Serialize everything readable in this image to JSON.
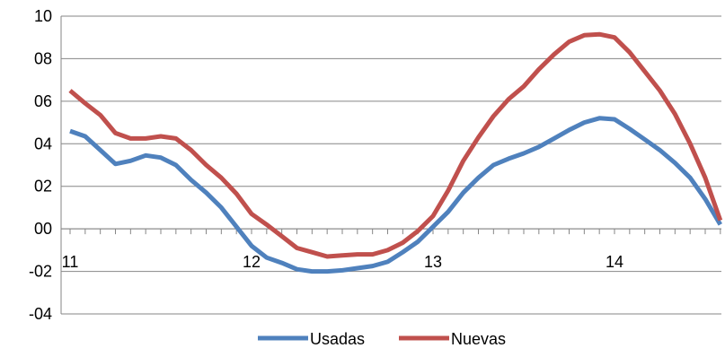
{
  "chart_data": {
    "type": "line",
    "title": "",
    "xlabel": "",
    "ylabel": "",
    "y_axis": {
      "min": -4,
      "max": 10,
      "step": 2,
      "tick_labels": [
        "-04",
        "-02",
        "00",
        "02",
        "04",
        "06",
        "08",
        "10"
      ]
    },
    "x_axis": {
      "min": 11,
      "max": 14.6,
      "tick_labels": [
        {
          "value": 11,
          "label": "11"
        },
        {
          "value": 12,
          "label": "12"
        },
        {
          "value": 13,
          "label": "13"
        },
        {
          "value": 14,
          "label": "14"
        }
      ],
      "minor_ticks_per_year": 12
    },
    "grid": "horizontal",
    "legend": {
      "position": "bottom"
    },
    "series": [
      {
        "name": "Usadas",
        "color": "#4F81BD",
        "points": [
          [
            11.0,
            4.6
          ],
          [
            11.083,
            4.35
          ],
          [
            11.167,
            3.7
          ],
          [
            11.25,
            3.05
          ],
          [
            11.333,
            3.2
          ],
          [
            11.417,
            3.45
          ],
          [
            11.5,
            3.35
          ],
          [
            11.583,
            3.0
          ],
          [
            11.667,
            2.3
          ],
          [
            11.75,
            1.7
          ],
          [
            11.833,
            1.0
          ],
          [
            11.917,
            0.1
          ],
          [
            12.0,
            -0.8
          ],
          [
            12.083,
            -1.35
          ],
          [
            12.167,
            -1.6
          ],
          [
            12.25,
            -1.9
          ],
          [
            12.333,
            -2.0
          ],
          [
            12.417,
            -2.0
          ],
          [
            12.5,
            -1.95
          ],
          [
            12.583,
            -1.85
          ],
          [
            12.667,
            -1.75
          ],
          [
            12.75,
            -1.55
          ],
          [
            12.833,
            -1.1
          ],
          [
            12.917,
            -0.6
          ],
          [
            13.0,
            0.1
          ],
          [
            13.083,
            0.8
          ],
          [
            13.167,
            1.7
          ],
          [
            13.25,
            2.4
          ],
          [
            13.333,
            3.0
          ],
          [
            13.417,
            3.3
          ],
          [
            13.5,
            3.55
          ],
          [
            13.583,
            3.85
          ],
          [
            13.667,
            4.25
          ],
          [
            13.75,
            4.65
          ],
          [
            13.833,
            5.0
          ],
          [
            13.917,
            5.2
          ],
          [
            14.0,
            5.15
          ],
          [
            14.083,
            4.7
          ],
          [
            14.167,
            4.2
          ],
          [
            14.25,
            3.7
          ],
          [
            14.333,
            3.1
          ],
          [
            14.417,
            2.4
          ],
          [
            14.5,
            1.4
          ],
          [
            14.583,
            0.2
          ]
        ]
      },
      {
        "name": "Nuevas",
        "color": "#C0504D",
        "points": [
          [
            11.0,
            6.5
          ],
          [
            11.083,
            5.9
          ],
          [
            11.167,
            5.35
          ],
          [
            11.25,
            4.5
          ],
          [
            11.333,
            4.25
          ],
          [
            11.417,
            4.25
          ],
          [
            11.5,
            4.35
          ],
          [
            11.583,
            4.25
          ],
          [
            11.667,
            3.7
          ],
          [
            11.75,
            3.0
          ],
          [
            11.833,
            2.4
          ],
          [
            11.917,
            1.65
          ],
          [
            12.0,
            0.7
          ],
          [
            12.083,
            0.2
          ],
          [
            12.167,
            -0.35
          ],
          [
            12.25,
            -0.9
          ],
          [
            12.333,
            -1.1
          ],
          [
            12.417,
            -1.3
          ],
          [
            12.5,
            -1.25
          ],
          [
            12.583,
            -1.2
          ],
          [
            12.667,
            -1.2
          ],
          [
            12.75,
            -1.0
          ],
          [
            12.833,
            -0.65
          ],
          [
            12.917,
            -0.1
          ],
          [
            13.0,
            0.6
          ],
          [
            13.083,
            1.8
          ],
          [
            13.167,
            3.2
          ],
          [
            13.25,
            4.3
          ],
          [
            13.333,
            5.3
          ],
          [
            13.417,
            6.1
          ],
          [
            13.5,
            6.7
          ],
          [
            13.583,
            7.5
          ],
          [
            13.667,
            8.2
          ],
          [
            13.75,
            8.8
          ],
          [
            13.833,
            9.1
          ],
          [
            13.917,
            9.15
          ],
          [
            14.0,
            9.0
          ],
          [
            14.083,
            8.3
          ],
          [
            14.167,
            7.4
          ],
          [
            14.25,
            6.5
          ],
          [
            14.333,
            5.4
          ],
          [
            14.417,
            4.0
          ],
          [
            14.5,
            2.4
          ],
          [
            14.583,
            0.4
          ]
        ]
      }
    ]
  }
}
